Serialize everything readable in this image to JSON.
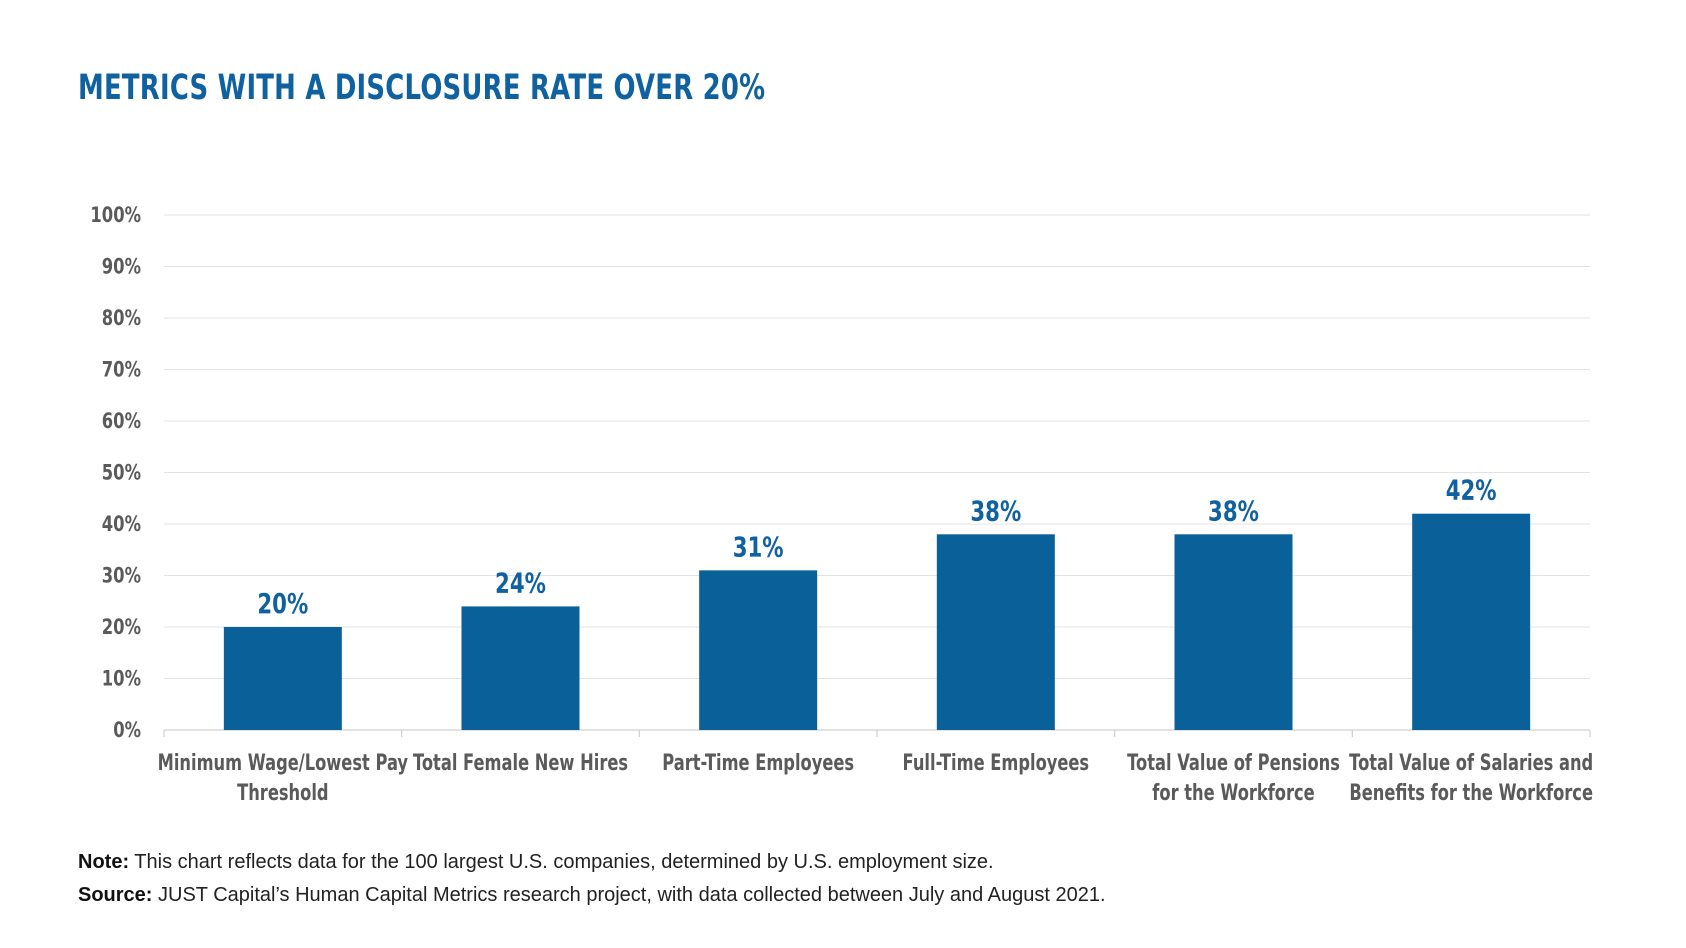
{
  "title": "METRICS WITH A DISCLOSURE RATE OVER 20%",
  "colors": {
    "title": "#1061a0",
    "bar": "#0a6199",
    "value_label": "#1061a0",
    "axis_text": "#5a5a5a",
    "grid": "#e3e3e3"
  },
  "chart_data": {
    "type": "bar",
    "categories": [
      [
        "Minimum Wage/Lowest Pay",
        "Threshold"
      ],
      [
        "Total Female New Hires"
      ],
      [
        "Part-Time Employees"
      ],
      [
        "Full-Time Employees"
      ],
      [
        "Total Value of Pensions",
        "for the Workforce"
      ],
      [
        "Total Value of Salaries and",
        "Benefits for the Workforce"
      ]
    ],
    "values": [
      20,
      24,
      31,
      38,
      38,
      42
    ],
    "value_labels": [
      "20%",
      "24%",
      "31%",
      "38%",
      "38%",
      "42%"
    ],
    "yticks": [
      "0%",
      "10%",
      "20%",
      "30%",
      "40%",
      "50%",
      "60%",
      "70%",
      "80%",
      "90%",
      "100%"
    ],
    "ylim": [
      0,
      100
    ],
    "grid": true,
    "legend": "none"
  },
  "footnotes": {
    "note_label": "Note:",
    "note_text": " This chart reflects data for the 100 largest U.S. companies, determined by U.S. employment size.",
    "source_label": "Source:",
    "source_text": " JUST Capital’s Human Capital Metrics research project, with data collected between July and August 2021."
  }
}
